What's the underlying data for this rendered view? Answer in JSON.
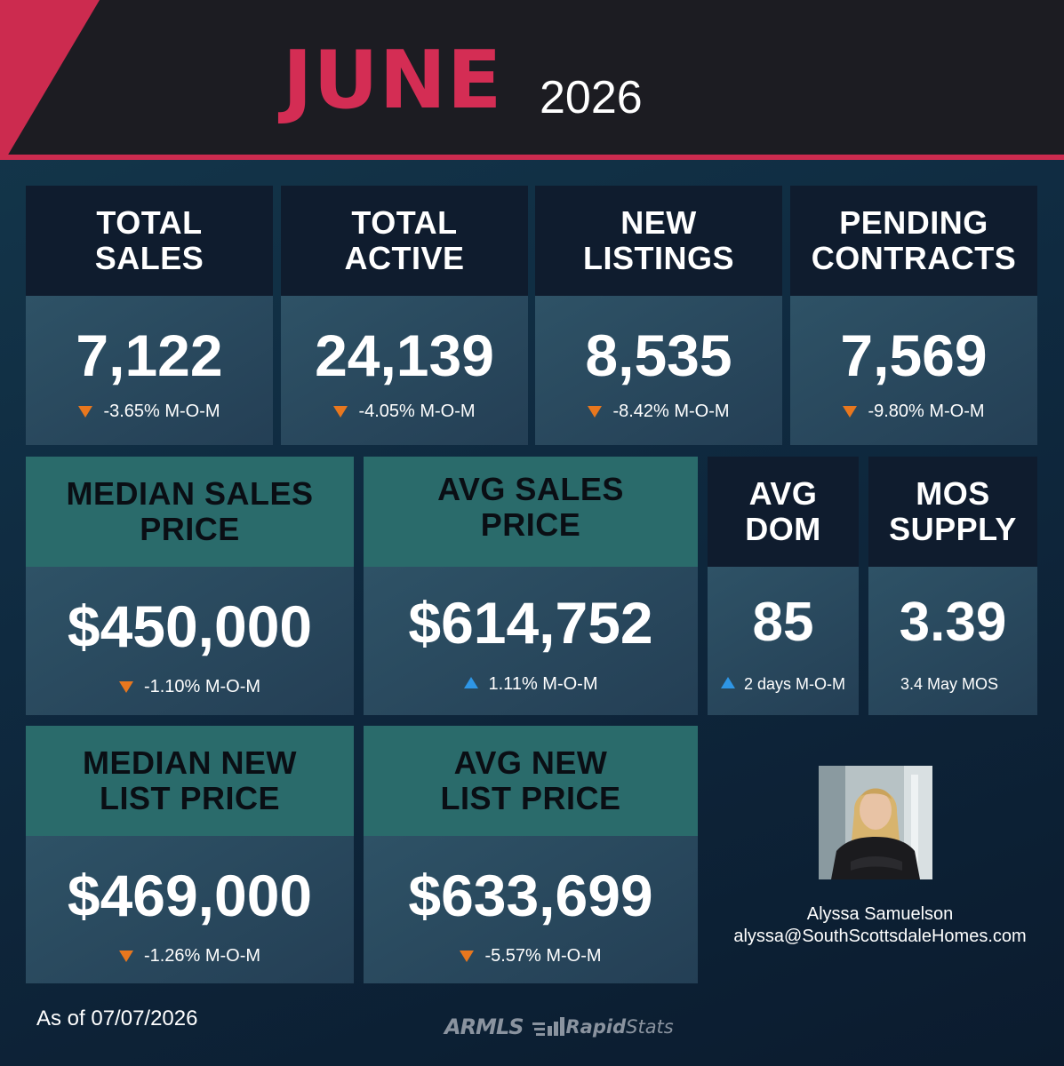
{
  "header": {
    "month": "JUNE",
    "year": "2026",
    "accent_color": "#d42d54"
  },
  "stats": {
    "total_sales": {
      "title_line1": "TOTAL",
      "title_line2": "SALES",
      "value": "7,122",
      "direction": "down",
      "change": "-3.65% M-O-M"
    },
    "total_active": {
      "title_line1": "TOTAL",
      "title_line2": "ACTIVE",
      "value": "24,139",
      "direction": "down",
      "change": "-4.05% M-O-M"
    },
    "new_listings": {
      "title_line1": "NEW",
      "title_line2": "LISTINGS",
      "value": "8,535",
      "direction": "down",
      "change": "-8.42% M-O-M"
    },
    "pending_contracts": {
      "title_line1": "PENDING",
      "title_line2": "CONTRACTS",
      "value": "7,569",
      "direction": "down",
      "change": "-9.80% M-O-M"
    },
    "median_sales_price": {
      "title_line1": "MEDIAN SALES",
      "title_line2": "PRICE",
      "value": "$450,000",
      "direction": "down",
      "change": "-1.10% M-O-M"
    },
    "avg_sales_price": {
      "title_line1": "AVG SALES",
      "title_line2": "PRICE",
      "value": "$614,752",
      "direction": "up",
      "change": "1.11% M-O-M"
    },
    "avg_dom": {
      "title_line1": "AVG",
      "title_line2": "DOM",
      "value": "85",
      "direction": "up",
      "change": "2 days M-O-M"
    },
    "mos_supply": {
      "title_line1": "MOS",
      "title_line2": "SUPPLY",
      "value": "3.39",
      "direction": "none",
      "change": "3.4 May MOS"
    },
    "median_new_list_price": {
      "title_line1": "MEDIAN NEW",
      "title_line2": "LIST PRICE",
      "value": "$469,000",
      "direction": "down",
      "change": "-1.26% M-O-M"
    },
    "avg_new_list_price": {
      "title_line1": "AVG NEW",
      "title_line2": "LIST PRICE",
      "value": "$633,699",
      "direction": "down",
      "change": "-5.57% M-O-M"
    }
  },
  "agent": {
    "name": "Alyssa Samuelson",
    "email": "alyssa@SouthScottsdaleHomes.com"
  },
  "footer": {
    "as_of": "As of 07/07/2026",
    "logo_armls": "ARMLS",
    "logo_rapid": "Rapid",
    "logo_stats": "Stats"
  },
  "colors": {
    "down_arrow": "#e8771e",
    "up_arrow": "#2e96e6",
    "teal_header": "#2a6b6b",
    "dark_header": "#0f1c2e"
  }
}
